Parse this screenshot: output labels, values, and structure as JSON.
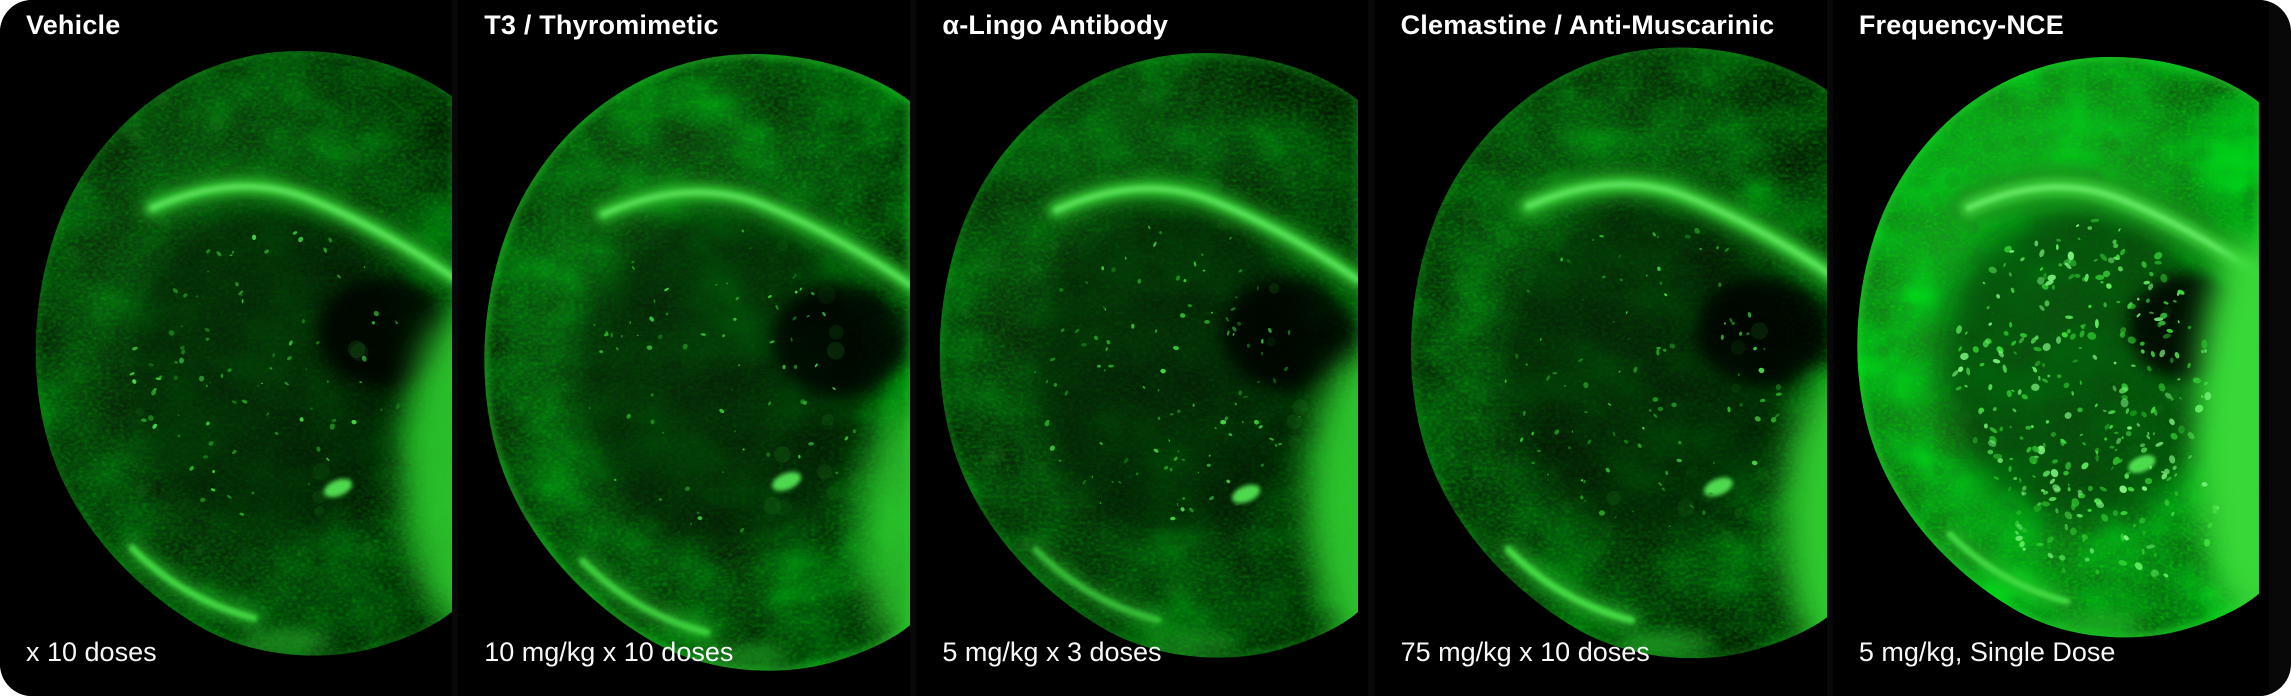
{
  "figure": {
    "kind": "fluorescence micrograph comparison",
    "signal_color": "#3ad63a",
    "background_color": "#000000",
    "text_color": "#ffffff"
  },
  "panels": [
    {
      "title": "Vehicle",
      "dose": "x 10 doses",
      "signal": "dim"
    },
    {
      "title": "T3 / Thyromimetic",
      "dose": "10 mg/kg x 10 doses",
      "signal": "dim"
    },
    {
      "title": "α-Lingo Antibody",
      "dose": "5 mg/kg x 3 doses",
      "signal": "dim"
    },
    {
      "title": "Clemastine / Anti-Muscarinic",
      "dose": "75 mg/kg x 10 doses",
      "signal": "dim"
    },
    {
      "title": "Frequency-NCE",
      "dose": "5 mg/kg, Single Dose",
      "signal": "bright"
    }
  ]
}
